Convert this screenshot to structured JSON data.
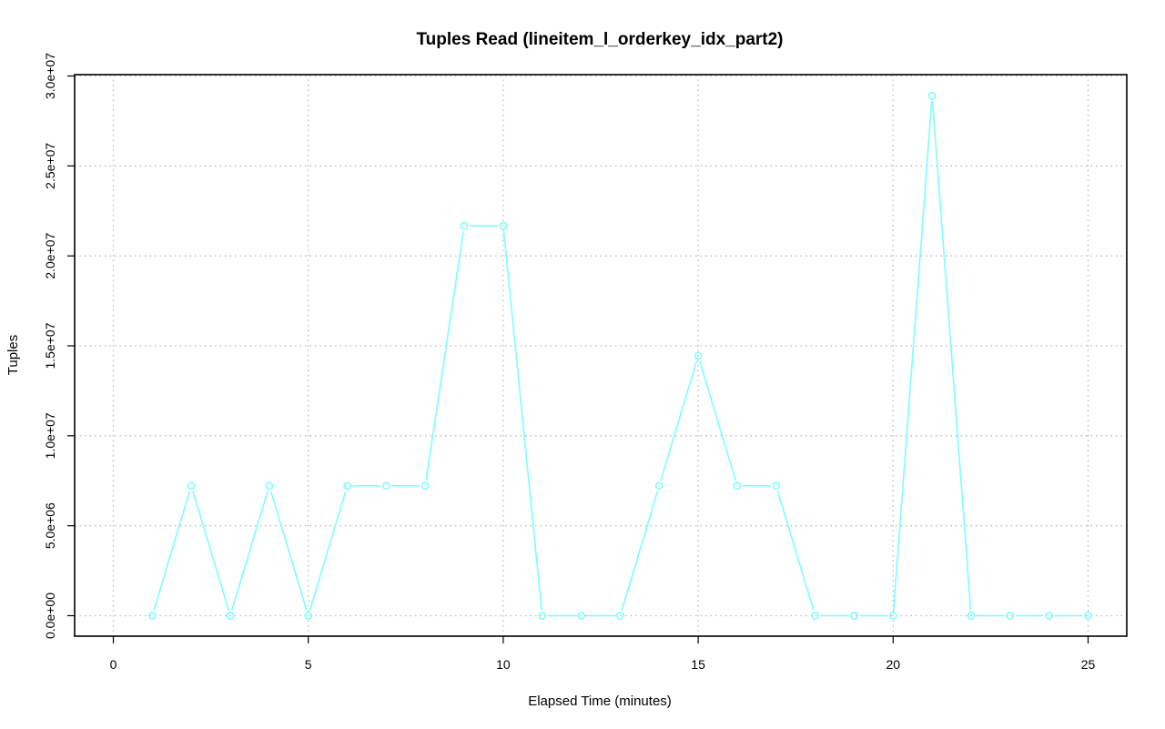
{
  "chart_data": {
    "type": "line",
    "title": "Tuples Read (lineitem_l_orderkey_idx_part2)",
    "xlabel": "Elapsed Time (minutes)",
    "ylabel": "Tuples",
    "xlim": [
      0,
      25
    ],
    "ylim": [
      0,
      30000000
    ],
    "x_ticks": [
      0,
      5,
      10,
      15,
      20,
      25
    ],
    "x_tick_labels": [
      "0",
      "5",
      "10",
      "15",
      "20",
      "25"
    ],
    "y_ticks": [
      0,
      5000000,
      10000000,
      15000000,
      20000000,
      25000000,
      30000000
    ],
    "y_tick_labels": [
      "0.0e+00",
      "5.0e+06",
      "1.0e+07",
      "1.5e+07",
      "2.0e+07",
      "2.5e+07",
      "3.0e+07"
    ],
    "grid": true,
    "series": [
      {
        "color": "#7ffdfd",
        "marker": "circle",
        "x": [
          1,
          2,
          3,
          4,
          5,
          6,
          7,
          8,
          9,
          10,
          11,
          12,
          13,
          14,
          15,
          16,
          17,
          18,
          19,
          20,
          21,
          22,
          23,
          24,
          25
        ],
        "values": [
          0,
          7220000,
          0,
          7220000,
          0,
          7220000,
          7220000,
          7220000,
          21670000,
          21670000,
          0,
          0,
          0,
          7220000,
          14450000,
          7220000,
          7220000,
          0,
          0,
          0,
          28900000,
          0,
          0,
          0,
          0
        ]
      }
    ]
  }
}
